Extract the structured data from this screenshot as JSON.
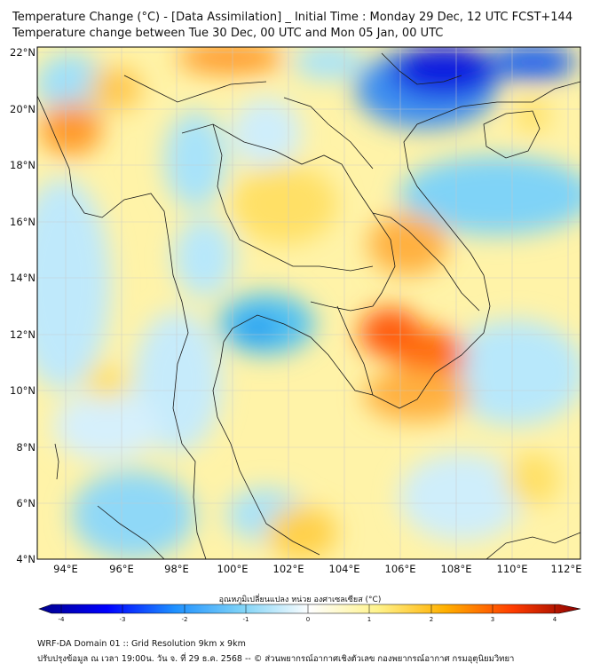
{
  "title_line1": "Temperature Change (°C) - [Data Assimilation] _ Initial Time : Monday 29 Dec, 12 UTC FCST+144",
  "title_line2": "Temperature change between Tue 30 Dec, 00 UTC and Mon 05 Jan, 00 UTC",
  "map": {
    "lat_labels": [
      "22°N",
      "20°N",
      "18°N",
      "16°N",
      "14°N",
      "12°N",
      "10°N",
      "8°N",
      "6°N",
      "4°N"
    ],
    "lon_labels": [
      "94°E",
      "96°E",
      "98°E",
      "100°E",
      "102°E",
      "104°E",
      "106°E",
      "108°E",
      "110°E",
      "112°E"
    ],
    "lat_range": [
      4,
      22.2
    ],
    "lon_range": [
      93,
      112.5
    ]
  },
  "colorbar": {
    "title": "อุณหภูมิเปลี่ยนแปลง หน่วย องศาเซลเซียส (°C)",
    "range": [
      -4,
      4
    ],
    "ticks": [
      "-4",
      "-3",
      "-2",
      "-1",
      "0",
      "1",
      "2",
      "3",
      "4"
    ],
    "colors": [
      "#00008b",
      "#0000ff",
      "#1e90ff",
      "#7fd3f7",
      "#ffffff",
      "#fff38c",
      "#ffb000",
      "#ff3c00",
      "#8b0000"
    ]
  },
  "footer_line1": "WRF-DA Domain 01 :: Grid Resolution 9km x 9km",
  "footer_line2": "ปรับปรุงข้อมูล ณ เวลา 19:00น. วัน จ. ที่ 29 ธ.ค. 2568 -- © ส่วนพยากรณ์อากาศเชิงตัวเลข กองพยากรณ์อากาศ กรมอุตุนิยมวิทยา"
}
